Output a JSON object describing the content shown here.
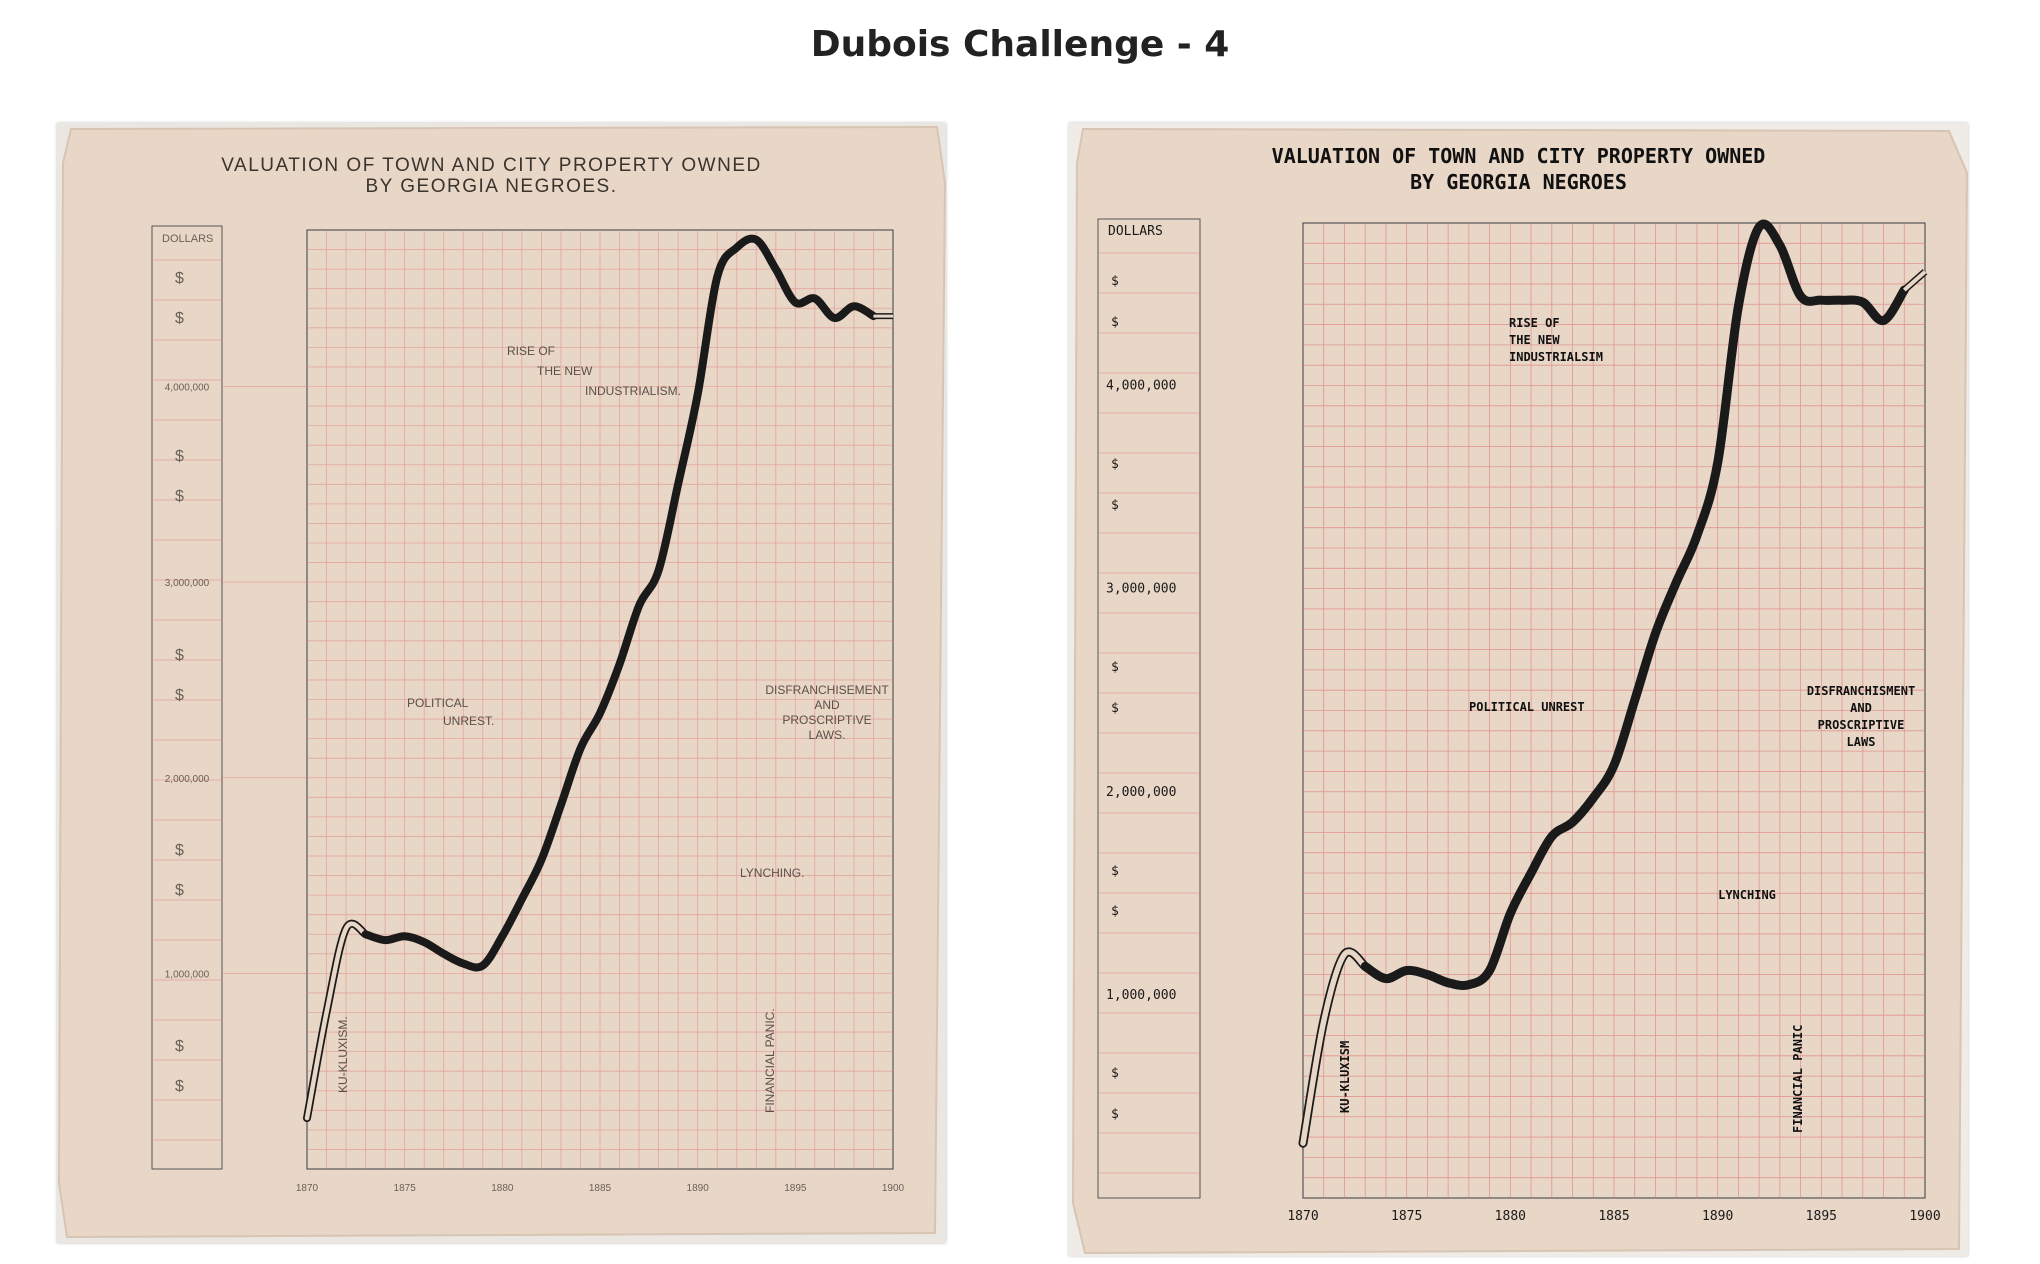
{
  "page": {
    "title": "Dubois Challenge - 4"
  },
  "colors": {
    "paper": "#e8d6c6",
    "grid": "#e08080",
    "ink": "#1a1a1a",
    "faint_ink": "#6a6058"
  },
  "chart_data": [
    {
      "type": "line",
      "panel": "original-scan",
      "title": "VALUATION OF TOWN AND CITY PROPERTY OWNED\nBY GEORGIA NEGROES.",
      "title_lines": [
        "VALUATION OF TOWN AND CITY PROPERTY OWNED",
        "BY GEORGIA NEGROES."
      ],
      "ylabel": "DOLLARS",
      "xlim": [
        1870,
        1900
      ],
      "ylim": [
        0,
        4800000
      ],
      "x_ticks": [
        "1870",
        "1875",
        "1880",
        "1885",
        "1890",
        "1895",
        "1900"
      ],
      "y_ticks": [
        "1,000,000",
        "2,000,000",
        "3,000,000",
        "4,000,000"
      ],
      "y_tick_labels": [
        "1,000,000",
        "2,000,000",
        "3,000,000",
        "4,000,000"
      ],
      "dollar_sign": "$",
      "grid": true,
      "annotations": [
        {
          "lines": [
            "RISE OF",
            "THE NEW",
            "INDUSTRIALISM."
          ]
        },
        {
          "lines": [
            "POLITICAL",
            "UNREST."
          ]
        },
        {
          "lines": [
            "DISFRANCHISEMENT",
            "AND",
            "PROSCRIPTIVE",
            "LAWS."
          ]
        },
        {
          "lines": [
            "LYNCHING."
          ]
        },
        {
          "lines": [
            "KU-KLUXISM."
          ],
          "vertical": true
        },
        {
          "lines": [
            "FINANCIAL PANIC."
          ],
          "vertical": true
        }
      ],
      "series": [
        {
          "x": [
            1870,
            1871,
            1872,
            1873,
            1874,
            1875,
            1876,
            1877,
            1878,
            1879,
            1880,
            1881,
            1882,
            1883,
            1884,
            1885,
            1886,
            1887,
            1888,
            1889,
            1890,
            1891,
            1892,
            1893,
            1894,
            1895,
            1896,
            1897,
            1898,
            1899,
            1900
          ],
          "values": [
            260000,
            800000,
            1230000,
            1200000,
            1170000,
            1190000,
            1160000,
            1100000,
            1050000,
            1040000,
            1190000,
            1380000,
            1580000,
            1860000,
            2150000,
            2330000,
            2580000,
            2880000,
            3060000,
            3500000,
            3960000,
            4560000,
            4710000,
            4750000,
            4600000,
            4430000,
            4450000,
            4350000,
            4410000,
            4360000,
            4360000
          ]
        }
      ]
    },
    {
      "type": "line",
      "panel": "recreation",
      "title": "VALUATION OF TOWN AND CITY PROPERTY OWNED\nBY GEORGIA NEGROES",
      "title_lines": [
        "VALUATION OF TOWN AND CITY PROPERTY OWNED",
        "BY GEORGIA NEGROES"
      ],
      "ylabel": "DOLLARS",
      "xlim": [
        1870,
        1900
      ],
      "ylim": [
        0,
        4800000
      ],
      "x_ticks": [
        "1870",
        "1875",
        "1880",
        "1885",
        "1890",
        "1895",
        "1900"
      ],
      "y_ticks": [
        "1,000,000",
        "2,000,000",
        "3,000,000",
        "4,000,000"
      ],
      "y_tick_labels": [
        "1,000,000",
        "2,000,000",
        "3,000,000",
        "4,000,000"
      ],
      "dollar_sign": "$",
      "grid": true,
      "annotations": [
        {
          "lines": [
            "RISE OF",
            "THE NEW",
            "INDUSTRIALSIM"
          ]
        },
        {
          "lines": [
            "POLITICAL UNREST"
          ]
        },
        {
          "lines": [
            "DISFRANCHISMENT",
            "AND",
            "PROSCRIPTIVE",
            "LAWS"
          ]
        },
        {
          "lines": [
            "LYNCHING"
          ]
        },
        {
          "lines": [
            "KU-KLUXISM"
          ],
          "vertical": true
        },
        {
          "lines": [
            "FINANCIAL PANIC"
          ],
          "vertical": true
        }
      ],
      "series": [
        {
          "x": [
            1870,
            1871,
            1872,
            1873,
            1874,
            1875,
            1876,
            1877,
            1878,
            1879,
            1880,
            1881,
            1882,
            1883,
            1884,
            1885,
            1886,
            1887,
            1888,
            1889,
            1890,
            1891,
            1892,
            1893,
            1894,
            1895,
            1896,
            1897,
            1898,
            1899,
            1900
          ],
          "values": [
            270000,
            870000,
            1200000,
            1140000,
            1080000,
            1120000,
            1100000,
            1060000,
            1050000,
            1120000,
            1400000,
            1600000,
            1780000,
            1850000,
            1970000,
            2130000,
            2450000,
            2780000,
            3030000,
            3260000,
            3620000,
            4390000,
            4780000,
            4690000,
            4440000,
            4420000,
            4420000,
            4410000,
            4320000,
            4470000,
            4560000
          ]
        }
      ]
    }
  ]
}
